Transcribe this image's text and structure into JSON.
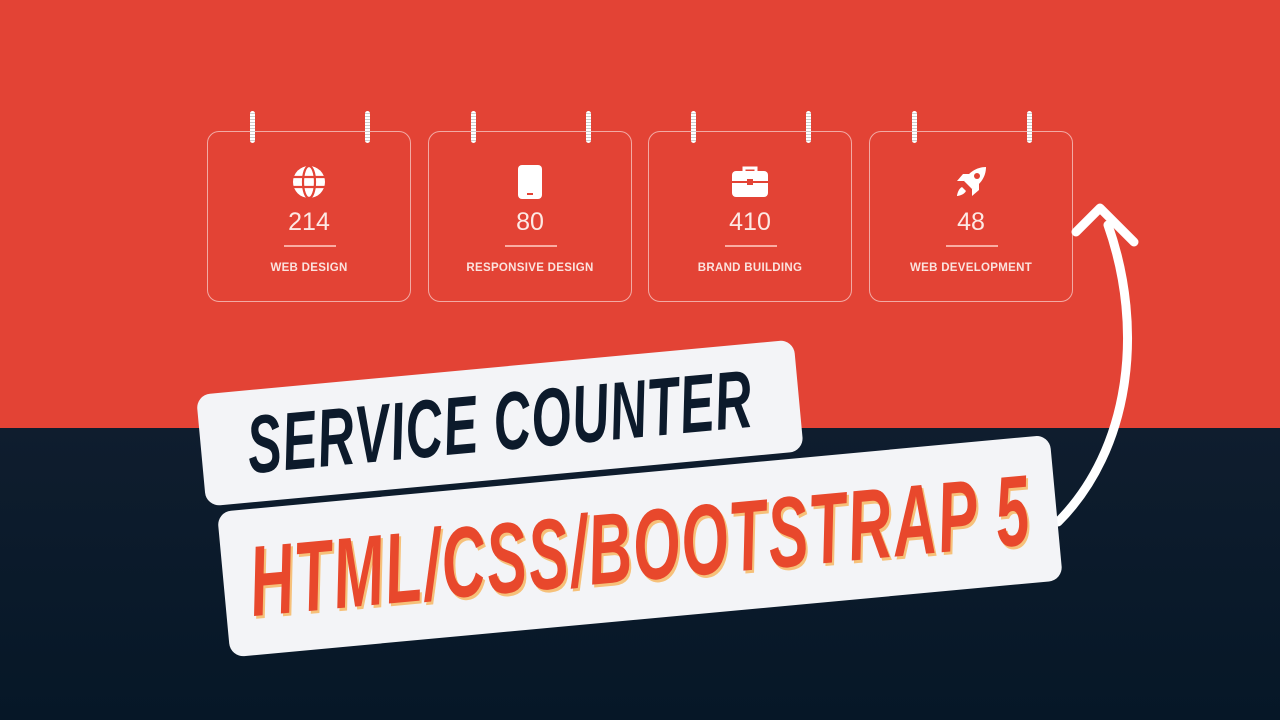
{
  "colors": {
    "top_bg": "#e34335",
    "bottom_bg": "#0c1a2b",
    "banner_bg": "#f3f4f7",
    "title_dark": "#0c1a2b",
    "title_accent": "#e8482c"
  },
  "cards": [
    {
      "icon": "globe-icon",
      "count": "214",
      "label": "WEB DESIGN"
    },
    {
      "icon": "tablet-icon",
      "count": "80",
      "label": "RESPONSIVE DESIGN"
    },
    {
      "icon": "briefcase-icon",
      "count": "410",
      "label": "BRAND BUILDING"
    },
    {
      "icon": "rocket-icon",
      "count": "48",
      "label": "WEB DEVELOPMENT"
    }
  ],
  "title": {
    "line1": "SERVICE COUNTER",
    "line2": "HTML/CSS/BOOTSTRAP 5"
  }
}
